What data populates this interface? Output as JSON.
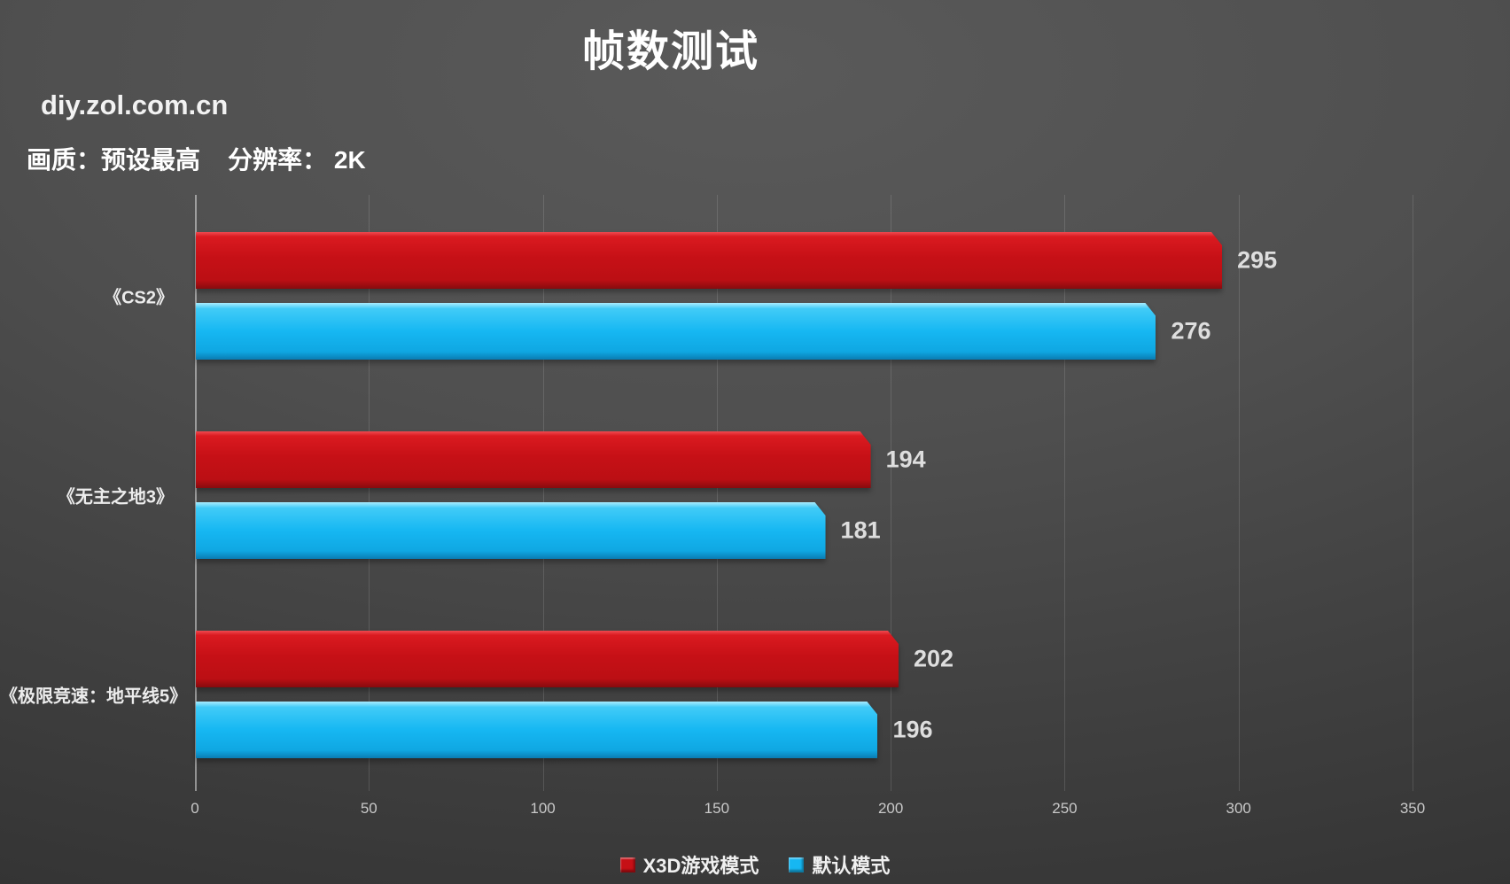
{
  "header": {
    "title": "帧数测试",
    "watermark": "diy.zol.com.cn",
    "settings_line": "画质：预设最高    分辨率： 2K"
  },
  "chart_data": {
    "type": "bar",
    "orientation": "horizontal",
    "title": "帧数测试",
    "categories": [
      "《CS2》",
      "《无主之地3》",
      "《极限竞速：地平线5》"
    ],
    "series": [
      {
        "name": "X3D游戏模式",
        "color": "#c61016",
        "values": [
          295,
          194,
          202
        ]
      },
      {
        "name": "默认模式",
        "color": "#16b7f2",
        "values": [
          276,
          181,
          196
        ]
      }
    ],
    "xlim": [
      0,
      350
    ],
    "xticks": [
      0,
      50,
      100,
      150,
      200,
      250,
      300,
      350
    ],
    "grid": true,
    "legend_position": "bottom",
    "value_labels": true
  }
}
